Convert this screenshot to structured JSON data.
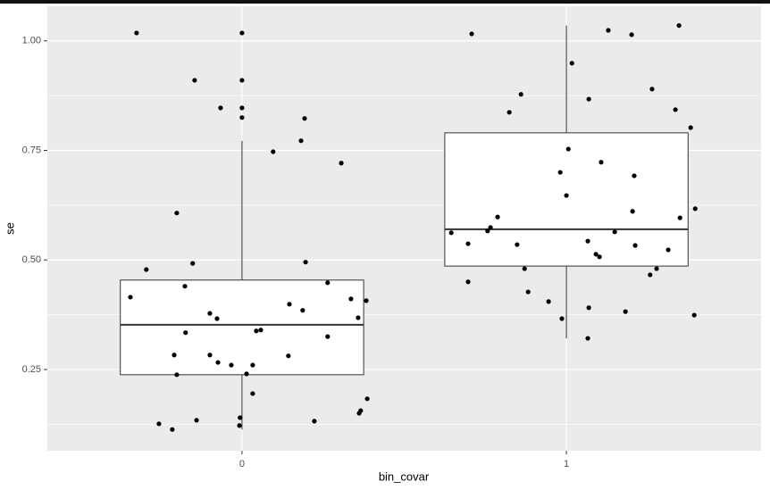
{
  "chart_data": {
    "type": "box",
    "x_label": "bin_covar",
    "y_label": "se",
    "categories": [
      "0",
      "1"
    ],
    "xlim": [
      -0.6,
      1.6
    ],
    "ylim": [
      0.0645,
      1.079
    ],
    "yticks": [
      0.25,
      {
        "value": 0.5,
        "label": "0.50"
      },
      0.75,
      {
        "value": 1,
        "label": "1.00"
      }
    ],
    "y_minor_ticks": [
      0.125,
      0.375,
      0.625,
      0.875
    ],
    "grid": true,
    "box_fill": "#ffffff",
    "point_color": "#000000",
    "boxes": [
      {
        "min": 0.113,
        "q1": 0.238,
        "median": 0.352,
        "q3": 0.454,
        "max": 0.772
      },
      {
        "min": 0.321,
        "q1": 0.486,
        "median": 0.57,
        "q3": 0.79,
        "max": 1.035
      }
    ],
    "series": [
      {
        "x": [
          -0.325,
          0,
          -0.146,
          0,
          -0.066,
          0,
          0,
          0.193,
          0.182,
          0.096,
          0.306,
          -0.201,
          -0.295,
          -0.152,
          0.196,
          -0.344,
          -0.176,
          0.264,
          0.336,
          0.383,
          0.146,
          0.187,
          -0.099,
          -0.077,
          0.358,
          -0.174,
          0.044,
          0.058,
          0.264,
          -0.209,
          -0.099,
          0.143,
          -0.074,
          -0.033,
          0.033,
          0.014,
          -0.201,
          0.033,
          0.386,
          0.366,
          0.361,
          -0.006,
          -0.14,
          0.223,
          -0.008,
          -0.256,
          -0.215
        ],
        "y": [
          1.018,
          1.018,
          0.91,
          0.91,
          0.847,
          0.847,
          0.825,
          0.823,
          0.772,
          0.747,
          0.721,
          0.607,
          0.478,
          0.492,
          0.495,
          0.415,
          0.44,
          0.448,
          0.411,
          0.407,
          0.399,
          0.385,
          0.378,
          0.366,
          0.368,
          0.334,
          0.338,
          0.34,
          0.325,
          0.283,
          0.283,
          0.281,
          0.266,
          0.26,
          0.26,
          0.24,
          0.238,
          0.195,
          0.183,
          0.156,
          0.15,
          0.14,
          0.134,
          0.132,
          0.122,
          0.126,
          0.113
        ]
      },
      {
        "x": [
          0.708,
          1.129,
          1.201,
          1.347,
          1.017,
          0.86,
          0.824,
          1.264,
          1.069,
          1.336,
          1.383,
          1.006,
          1.107,
          0.981,
          1.209,
          1.0,
          1.397,
          1.204,
          1.35,
          0.788,
          0.766,
          0.757,
          0.645,
          1.149,
          0.697,
          0.848,
          1.066,
          1.212,
          1.314,
          1.091,
          1.102,
          0.871,
          1.278,
          1.258,
          0.697,
          0.882,
          0.945,
          1.069,
          1.182,
          1.394,
          0.986,
          1.066
        ],
        "y": [
          1.016,
          1.024,
          1.014,
          1.035,
          0.949,
          0.878,
          0.837,
          0.89,
          0.867,
          0.843,
          0.802,
          0.753,
          0.723,
          0.7,
          0.692,
          0.647,
          0.617,
          0.611,
          0.596,
          0.598,
          0.574,
          0.566,
          0.562,
          0.564,
          0.537,
          0.535,
          0.543,
          0.533,
          0.523,
          0.513,
          0.507,
          0.48,
          0.48,
          0.466,
          0.45,
          0.427,
          0.405,
          0.391,
          0.382,
          0.374,
          0.366,
          0.321
        ]
      }
    ]
  }
}
